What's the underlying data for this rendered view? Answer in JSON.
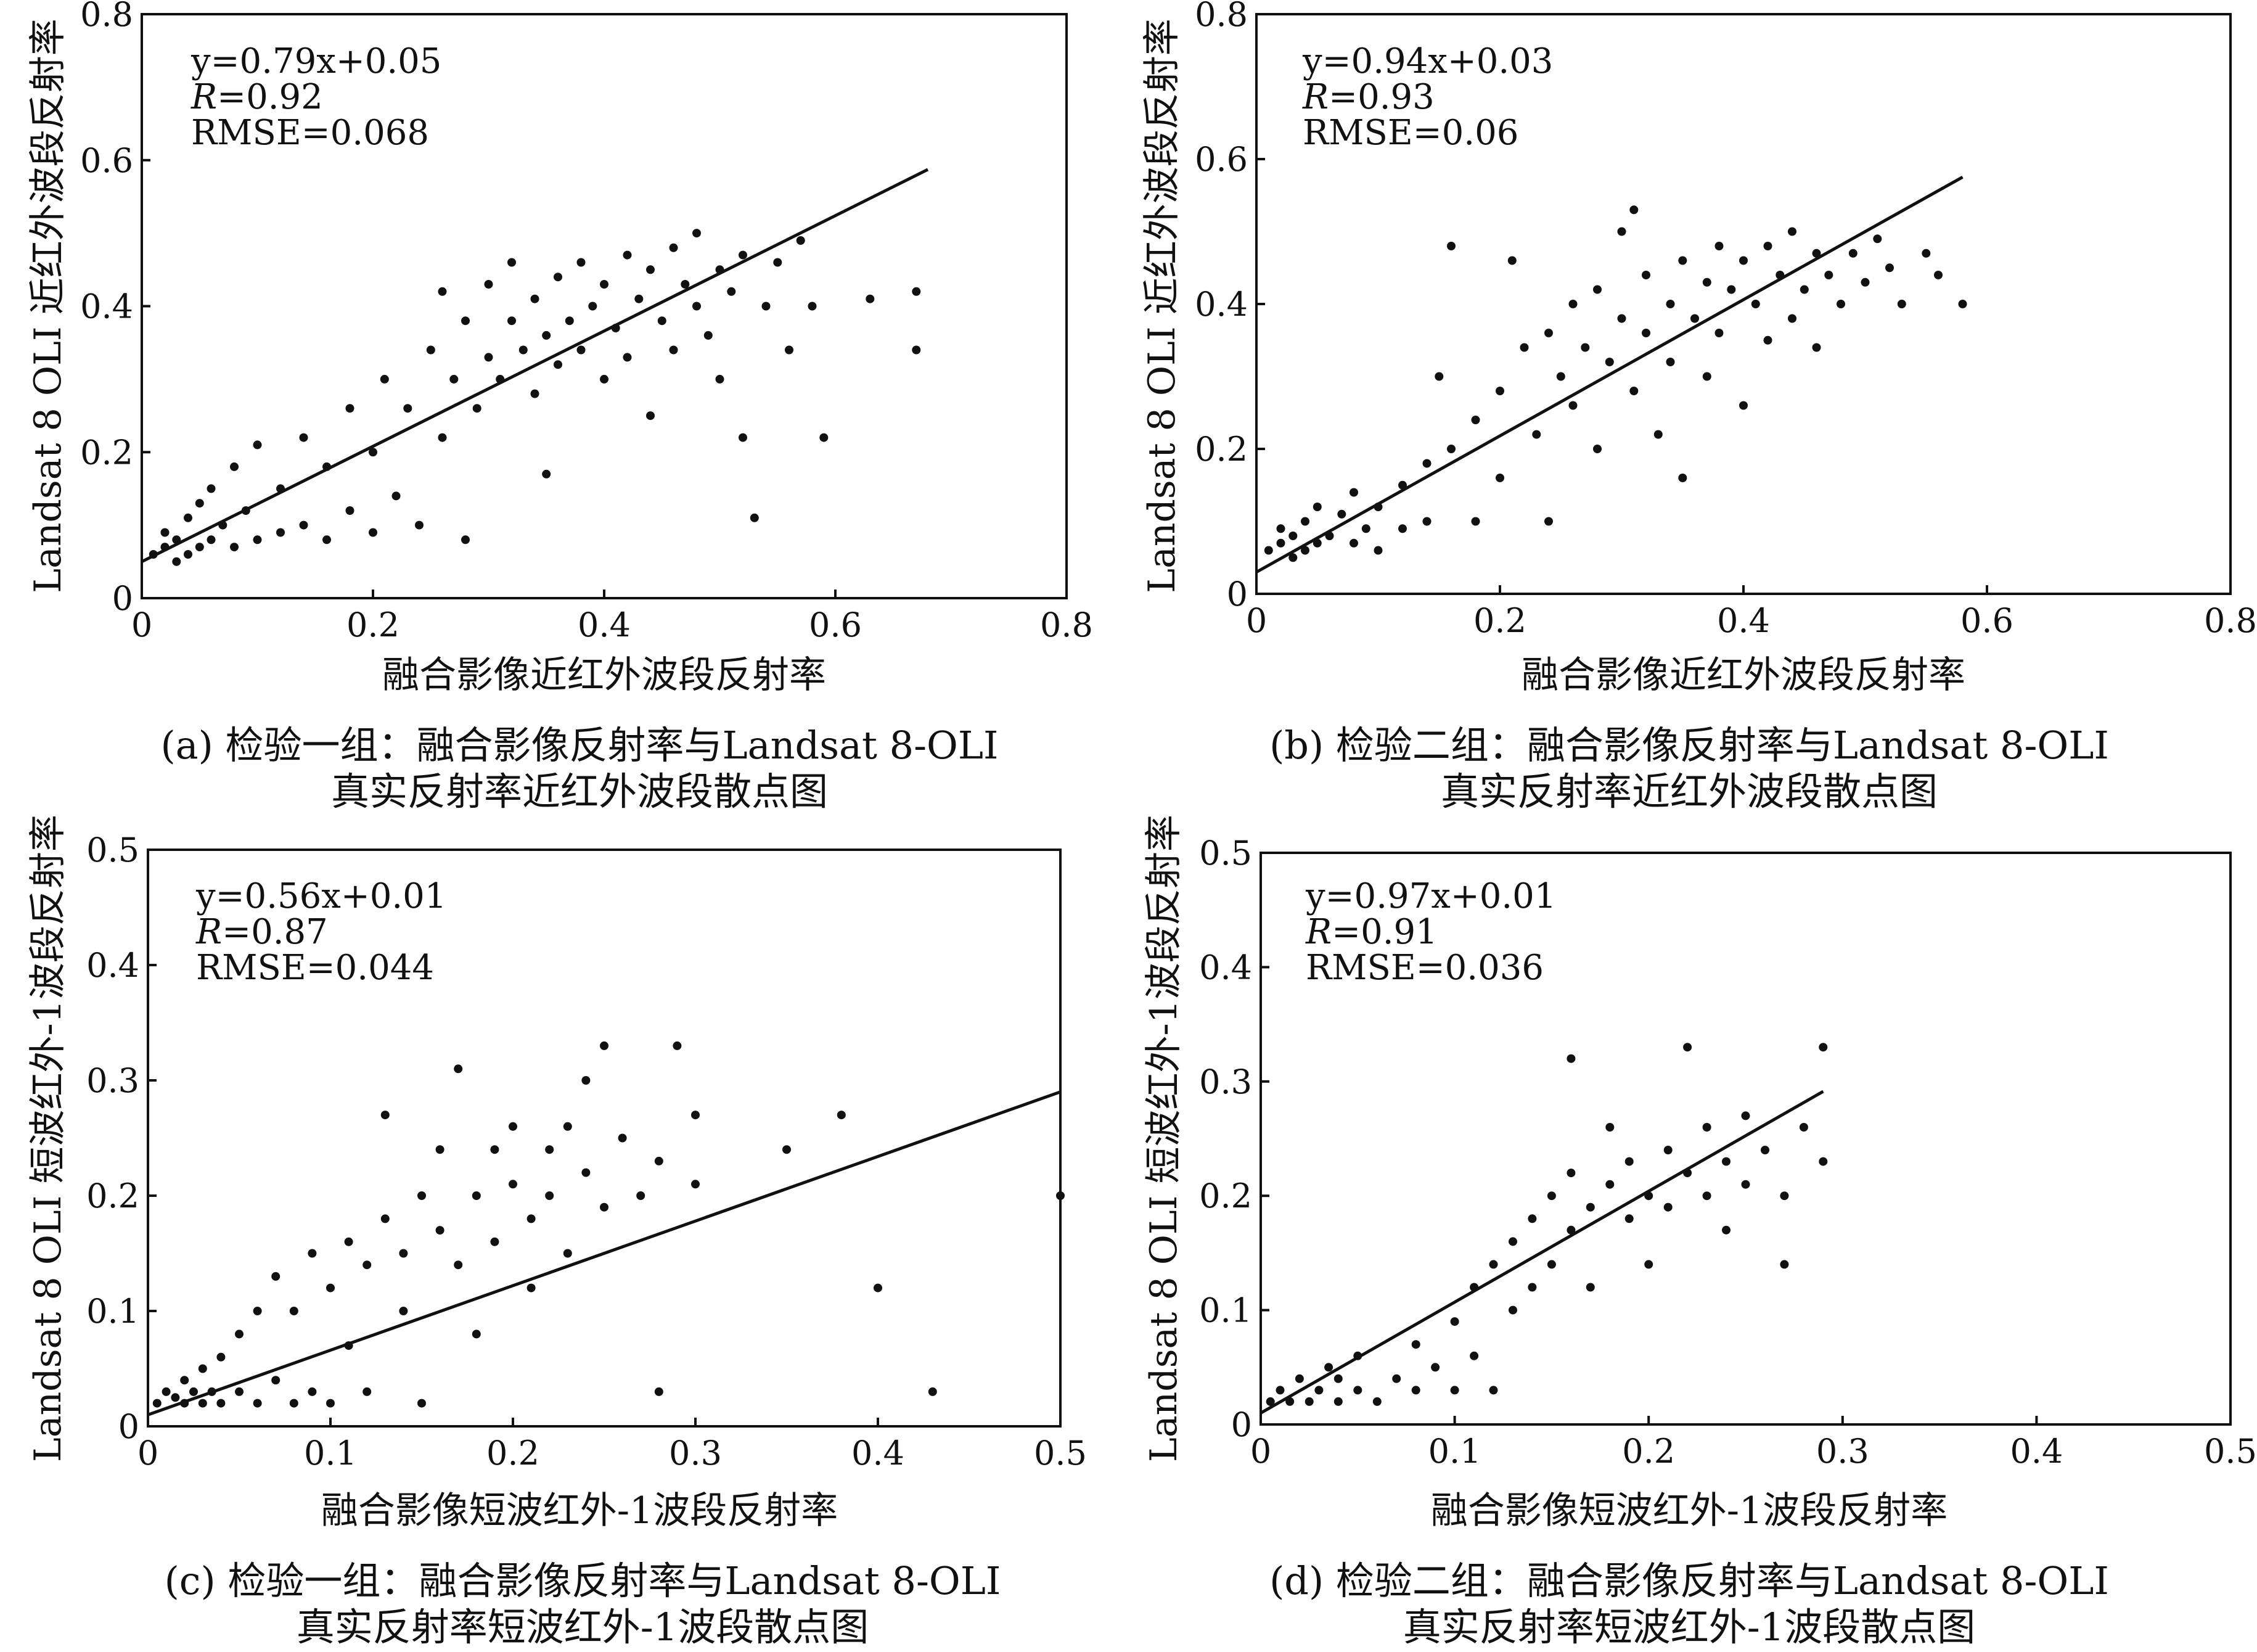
{
  "figure": {
    "panels": [
      {
        "id": "a",
        "caption_line1": "(a) 检验一组：融合影像反射率与Landsat 8-OLI",
        "caption_line2": "真实反射率近红外波段散点图",
        "stats": {
          "equation": "y=0.79x+0.05",
          "r_symbol": "R",
          "r_value": "=0.92",
          "rmse": "RMSE=0.068"
        }
      },
      {
        "id": "b",
        "caption_line1": "(b) 检验二组：融合影像反射率与Landsat 8-OLI",
        "caption_line2": "真实反射率近红外波段散点图",
        "stats": {
          "equation": "y=0.94x+0.03",
          "r_symbol": "R",
          "r_value": "=0.93",
          "rmse": "RMSE=0.06"
        }
      },
      {
        "id": "c",
        "caption_line1": "(c) 检验一组：融合影像反射率与Landsat 8-OLI",
        "caption_line2": "真实反射率短波红外-1波段散点图",
        "stats": {
          "equation": "y=0.56x+0.01",
          "r_symbol": "R",
          "r_value": "=0.87",
          "rmse": "RMSE=0.044"
        }
      },
      {
        "id": "d",
        "caption_line1": "(d) 检验二组：融合影像反射率与Landsat 8-OLI",
        "caption_line2": "真实反射率短波红外-1波段散点图",
        "stats": {
          "equation": "y=0.97x+0.01",
          "r_symbol": "R",
          "r_value": "=0.91",
          "rmse": "RMSE=0.036"
        }
      }
    ]
  },
  "chart_data": [
    {
      "type": "scatter",
      "xlabel": "融合影像近红外波段反射率",
      "ylabel": "Landsat 8 OLI 近红外波段反射率",
      "xlim": [
        0,
        0.8
      ],
      "ylim": [
        0,
        0.8
      ],
      "xticks": [
        0,
        0.2,
        0.4,
        0.6,
        0.8
      ],
      "xtick_labels": [
        "0",
        "0.2",
        "0.4",
        "0.6",
        "0.8"
      ],
      "yticks": [
        0,
        0.2,
        0.4,
        0.6,
        0.8
      ],
      "ytick_labels": [
        "0",
        "0.2",
        "0.4",
        "0.6",
        "0.8"
      ],
      "grid": false,
      "fit": {
        "slope": 0.79,
        "intercept": 0.05,
        "x_range": [
          0,
          0.68
        ]
      },
      "points": [
        [
          0.01,
          0.06
        ],
        [
          0.02,
          0.07
        ],
        [
          0.02,
          0.09
        ],
        [
          0.03,
          0.05
        ],
        [
          0.03,
          0.08
        ],
        [
          0.04,
          0.06
        ],
        [
          0.04,
          0.11
        ],
        [
          0.05,
          0.07
        ],
        [
          0.05,
          0.13
        ],
        [
          0.06,
          0.08
        ],
        [
          0.06,
          0.15
        ],
        [
          0.07,
          0.1
        ],
        [
          0.08,
          0.07
        ],
        [
          0.08,
          0.18
        ],
        [
          0.09,
          0.12
        ],
        [
          0.1,
          0.08
        ],
        [
          0.1,
          0.21
        ],
        [
          0.12,
          0.15
        ],
        [
          0.12,
          0.09
        ],
        [
          0.14,
          0.22
        ],
        [
          0.14,
          0.1
        ],
        [
          0.16,
          0.18
        ],
        [
          0.16,
          0.08
        ],
        [
          0.18,
          0.26
        ],
        [
          0.18,
          0.12
        ],
        [
          0.2,
          0.2
        ],
        [
          0.2,
          0.09
        ],
        [
          0.21,
          0.3
        ],
        [
          0.22,
          0.14
        ],
        [
          0.23,
          0.26
        ],
        [
          0.24,
          0.1
        ],
        [
          0.25,
          0.34
        ],
        [
          0.26,
          0.22
        ],
        [
          0.26,
          0.42
        ],
        [
          0.27,
          0.3
        ],
        [
          0.28,
          0.08
        ],
        [
          0.28,
          0.38
        ],
        [
          0.29,
          0.26
        ],
        [
          0.3,
          0.33
        ],
        [
          0.3,
          0.43
        ],
        [
          0.31,
          0.3
        ],
        [
          0.32,
          0.38
        ],
        [
          0.32,
          0.46
        ],
        [
          0.33,
          0.34
        ],
        [
          0.34,
          0.28
        ],
        [
          0.34,
          0.41
        ],
        [
          0.35,
          0.36
        ],
        [
          0.35,
          0.17
        ],
        [
          0.36,
          0.32
        ],
        [
          0.36,
          0.44
        ],
        [
          0.37,
          0.38
        ],
        [
          0.38,
          0.34
        ],
        [
          0.38,
          0.46
        ],
        [
          0.39,
          0.4
        ],
        [
          0.4,
          0.3
        ],
        [
          0.4,
          0.43
        ],
        [
          0.41,
          0.37
        ],
        [
          0.42,
          0.47
        ],
        [
          0.42,
          0.33
        ],
        [
          0.43,
          0.41
        ],
        [
          0.44,
          0.25
        ],
        [
          0.44,
          0.45
        ],
        [
          0.45,
          0.38
        ],
        [
          0.46,
          0.48
        ],
        [
          0.46,
          0.34
        ],
        [
          0.47,
          0.43
        ],
        [
          0.48,
          0.4
        ],
        [
          0.48,
          0.5
        ],
        [
          0.49,
          0.36
        ],
        [
          0.5,
          0.45
        ],
        [
          0.5,
          0.3
        ],
        [
          0.51,
          0.42
        ],
        [
          0.52,
          0.47
        ],
        [
          0.52,
          0.22
        ],
        [
          0.53,
          0.11
        ],
        [
          0.54,
          0.4
        ],
        [
          0.55,
          0.46
        ],
        [
          0.56,
          0.34
        ],
        [
          0.57,
          0.49
        ],
        [
          0.58,
          0.4
        ],
        [
          0.59,
          0.22
        ],
        [
          0.63,
          0.41
        ],
        [
          0.67,
          0.42
        ],
        [
          0.67,
          0.34
        ]
      ]
    },
    {
      "type": "scatter",
      "xlabel": "融合影像近红外波段反射率",
      "ylabel": "Landsat 8 OLI 近红外波段反射率",
      "xlim": [
        0,
        0.8
      ],
      "ylim": [
        0,
        0.8
      ],
      "xticks": [
        0,
        0.2,
        0.4,
        0.6,
        0.8
      ],
      "xtick_labels": [
        "0",
        "0.2",
        "0.4",
        "0.6",
        "0.8"
      ],
      "yticks": [
        0,
        0.2,
        0.4,
        0.6,
        0.8
      ],
      "ytick_labels": [
        "0",
        "0.2",
        "0.4",
        "0.6",
        "0.8"
      ],
      "grid": false,
      "fit": {
        "slope": 0.94,
        "intercept": 0.03,
        "x_range": [
          0,
          0.58
        ]
      },
      "points": [
        [
          0.01,
          0.06
        ],
        [
          0.02,
          0.07
        ],
        [
          0.02,
          0.09
        ],
        [
          0.03,
          0.05
        ],
        [
          0.03,
          0.08
        ],
        [
          0.04,
          0.06
        ],
        [
          0.04,
          0.1
        ],
        [
          0.05,
          0.07
        ],
        [
          0.05,
          0.12
        ],
        [
          0.06,
          0.08
        ],
        [
          0.07,
          0.11
        ],
        [
          0.08,
          0.07
        ],
        [
          0.08,
          0.14
        ],
        [
          0.09,
          0.09
        ],
        [
          0.1,
          0.12
        ],
        [
          0.1,
          0.06
        ],
        [
          0.12,
          0.15
        ],
        [
          0.12,
          0.09
        ],
        [
          0.14,
          0.18
        ],
        [
          0.14,
          0.1
        ],
        [
          0.15,
          0.3
        ],
        [
          0.16,
          0.2
        ],
        [
          0.16,
          0.48
        ],
        [
          0.18,
          0.24
        ],
        [
          0.18,
          0.1
        ],
        [
          0.2,
          0.28
        ],
        [
          0.2,
          0.16
        ],
        [
          0.21,
          0.46
        ],
        [
          0.22,
          0.34
        ],
        [
          0.23,
          0.22
        ],
        [
          0.24,
          0.36
        ],
        [
          0.24,
          0.1
        ],
        [
          0.25,
          0.3
        ],
        [
          0.26,
          0.4
        ],
        [
          0.26,
          0.26
        ],
        [
          0.27,
          0.34
        ],
        [
          0.28,
          0.42
        ],
        [
          0.28,
          0.2
        ],
        [
          0.29,
          0.32
        ],
        [
          0.3,
          0.38
        ],
        [
          0.3,
          0.5
        ],
        [
          0.31,
          0.28
        ],
        [
          0.31,
          0.53
        ],
        [
          0.32,
          0.36
        ],
        [
          0.32,
          0.44
        ],
        [
          0.33,
          0.22
        ],
        [
          0.34,
          0.4
        ],
        [
          0.34,
          0.32
        ],
        [
          0.35,
          0.46
        ],
        [
          0.35,
          0.16
        ],
        [
          0.36,
          0.38
        ],
        [
          0.37,
          0.43
        ],
        [
          0.37,
          0.3
        ],
        [
          0.38,
          0.48
        ],
        [
          0.38,
          0.36
        ],
        [
          0.39,
          0.42
        ],
        [
          0.4,
          0.46
        ],
        [
          0.4,
          0.26
        ],
        [
          0.41,
          0.4
        ],
        [
          0.42,
          0.48
        ],
        [
          0.42,
          0.35
        ],
        [
          0.43,
          0.44
        ],
        [
          0.44,
          0.38
        ],
        [
          0.44,
          0.5
        ],
        [
          0.45,
          0.42
        ],
        [
          0.46,
          0.47
        ],
        [
          0.46,
          0.34
        ],
        [
          0.47,
          0.44
        ],
        [
          0.48,
          0.4
        ],
        [
          0.49,
          0.47
        ],
        [
          0.5,
          0.43
        ],
        [
          0.51,
          0.49
        ],
        [
          0.52,
          0.45
        ],
        [
          0.53,
          0.4
        ],
        [
          0.55,
          0.47
        ],
        [
          0.56,
          0.44
        ],
        [
          0.58,
          0.4
        ]
      ]
    },
    {
      "type": "scatter",
      "xlabel": "融合影像短波红外-1波段反射率",
      "ylabel": "Landsat 8 OLI 短波红外-1波段反射率",
      "xlim": [
        0,
        0.5
      ],
      "ylim": [
        0,
        0.5
      ],
      "xticks": [
        0,
        0.1,
        0.2,
        0.3,
        0.4,
        0.5
      ],
      "xtick_labels": [
        "0",
        "0.1",
        "0.2",
        "0.3",
        "0.4",
        "0.5"
      ],
      "yticks": [
        0,
        0.1,
        0.2,
        0.3,
        0.4,
        0.5
      ],
      "ytick_labels": [
        "0",
        "0.1",
        "0.2",
        "0.3",
        "0.4",
        "0.5"
      ],
      "grid": false,
      "fit": {
        "slope": 0.56,
        "intercept": 0.01,
        "x_range": [
          0,
          0.5
        ]
      },
      "points": [
        [
          0.005,
          0.02
        ],
        [
          0.01,
          0.03
        ],
        [
          0.015,
          0.025
        ],
        [
          0.02,
          0.02
        ],
        [
          0.02,
          0.04
        ],
        [
          0.025,
          0.03
        ],
        [
          0.03,
          0.02
        ],
        [
          0.03,
          0.05
        ],
        [
          0.035,
          0.03
        ],
        [
          0.04,
          0.02
        ],
        [
          0.04,
          0.06
        ],
        [
          0.05,
          0.03
        ],
        [
          0.05,
          0.08
        ],
        [
          0.06,
          0.02
        ],
        [
          0.06,
          0.1
        ],
        [
          0.07,
          0.04
        ],
        [
          0.07,
          0.13
        ],
        [
          0.08,
          0.02
        ],
        [
          0.08,
          0.1
        ],
        [
          0.09,
          0.15
        ],
        [
          0.09,
          0.03
        ],
        [
          0.1,
          0.12
        ],
        [
          0.1,
          0.02
        ],
        [
          0.11,
          0.16
        ],
        [
          0.11,
          0.07
        ],
        [
          0.12,
          0.14
        ],
        [
          0.12,
          0.03
        ],
        [
          0.13,
          0.18
        ],
        [
          0.13,
          0.27
        ],
        [
          0.14,
          0.15
        ],
        [
          0.14,
          0.1
        ],
        [
          0.15,
          0.2
        ],
        [
          0.15,
          0.02
        ],
        [
          0.16,
          0.17
        ],
        [
          0.16,
          0.24
        ],
        [
          0.17,
          0.14
        ],
        [
          0.17,
          0.31
        ],
        [
          0.18,
          0.2
        ],
        [
          0.18,
          0.08
        ],
        [
          0.19,
          0.24
        ],
        [
          0.19,
          0.16
        ],
        [
          0.2,
          0.21
        ],
        [
          0.2,
          0.26
        ],
        [
          0.21,
          0.18
        ],
        [
          0.21,
          0.12
        ],
        [
          0.22,
          0.24
        ],
        [
          0.22,
          0.2
        ],
        [
          0.23,
          0.26
        ],
        [
          0.23,
          0.15
        ],
        [
          0.24,
          0.22
        ],
        [
          0.24,
          0.3
        ],
        [
          0.25,
          0.19
        ],
        [
          0.25,
          0.33
        ],
        [
          0.26,
          0.25
        ],
        [
          0.27,
          0.2
        ],
        [
          0.28,
          0.23
        ],
        [
          0.28,
          0.03
        ],
        [
          0.29,
          0.33
        ],
        [
          0.3,
          0.27
        ],
        [
          0.3,
          0.21
        ],
        [
          0.35,
          0.24
        ],
        [
          0.38,
          0.27
        ],
        [
          0.4,
          0.12
        ],
        [
          0.43,
          0.03
        ],
        [
          0.5,
          0.2
        ]
      ]
    },
    {
      "type": "scatter",
      "xlabel": "融合影像短波红外-1波段反射率",
      "ylabel": "Landsat 8 OLI 短波红外-1波段反射率",
      "xlim": [
        0,
        0.5
      ],
      "ylim": [
        0,
        0.5
      ],
      "xticks": [
        0,
        0.1,
        0.2,
        0.3,
        0.4,
        0.5
      ],
      "xtick_labels": [
        "0",
        "0.1",
        "0.2",
        "0.3",
        "0.4",
        "0.5"
      ],
      "yticks": [
        0,
        0.1,
        0.2,
        0.3,
        0.4,
        0.5
      ],
      "ytick_labels": [
        "0",
        "0.1",
        "0.2",
        "0.3",
        "0.4",
        "0.5"
      ],
      "grid": false,
      "fit": {
        "slope": 0.97,
        "intercept": 0.01,
        "x_range": [
          0,
          0.29
        ]
      },
      "points": [
        [
          0.005,
          0.02
        ],
        [
          0.01,
          0.03
        ],
        [
          0.015,
          0.02
        ],
        [
          0.02,
          0.04
        ],
        [
          0.025,
          0.02
        ],
        [
          0.03,
          0.03
        ],
        [
          0.035,
          0.05
        ],
        [
          0.04,
          0.02
        ],
        [
          0.04,
          0.04
        ],
        [
          0.05,
          0.03
        ],
        [
          0.05,
          0.06
        ],
        [
          0.06,
          0.02
        ],
        [
          0.07,
          0.04
        ],
        [
          0.08,
          0.03
        ],
        [
          0.08,
          0.07
        ],
        [
          0.09,
          0.05
        ],
        [
          0.1,
          0.03
        ],
        [
          0.1,
          0.09
        ],
        [
          0.11,
          0.12
        ],
        [
          0.11,
          0.06
        ],
        [
          0.12,
          0.14
        ],
        [
          0.12,
          0.03
        ],
        [
          0.13,
          0.16
        ],
        [
          0.13,
          0.1
        ],
        [
          0.14,
          0.18
        ],
        [
          0.14,
          0.12
        ],
        [
          0.15,
          0.2
        ],
        [
          0.15,
          0.14
        ],
        [
          0.16,
          0.17
        ],
        [
          0.16,
          0.22
        ],
        [
          0.16,
          0.32
        ],
        [
          0.17,
          0.19
        ],
        [
          0.17,
          0.12
        ],
        [
          0.18,
          0.21
        ],
        [
          0.18,
          0.26
        ],
        [
          0.19,
          0.18
        ],
        [
          0.19,
          0.23
        ],
        [
          0.2,
          0.2
        ],
        [
          0.2,
          0.14
        ],
        [
          0.21,
          0.24
        ],
        [
          0.21,
          0.19
        ],
        [
          0.22,
          0.22
        ],
        [
          0.22,
          0.33
        ],
        [
          0.23,
          0.2
        ],
        [
          0.23,
          0.26
        ],
        [
          0.24,
          0.23
        ],
        [
          0.24,
          0.17
        ],
        [
          0.25,
          0.27
        ],
        [
          0.25,
          0.21
        ],
        [
          0.26,
          0.24
        ],
        [
          0.27,
          0.2
        ],
        [
          0.27,
          0.14
        ],
        [
          0.28,
          0.26
        ],
        [
          0.29,
          0.23
        ],
        [
          0.29,
          0.33
        ]
      ]
    }
  ]
}
